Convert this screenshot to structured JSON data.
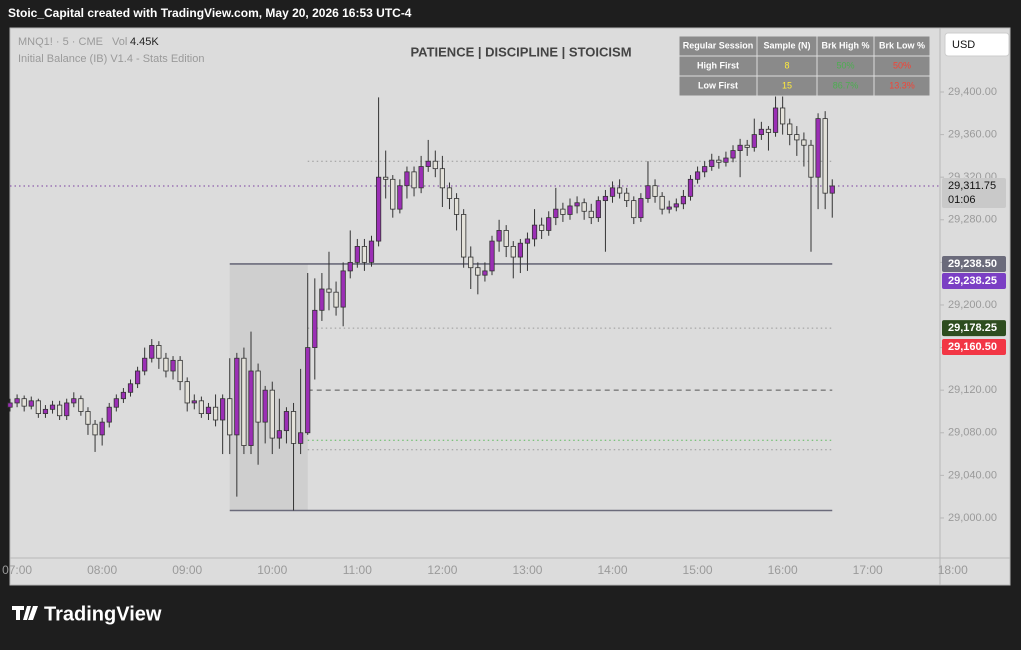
{
  "header": {
    "text": "Stoic_Capital created with TradingView.com, May 20, 2026 16:53 UTC-4"
  },
  "footer": {
    "brand": "TradingView"
  },
  "chart_data": {
    "type": "candlestick",
    "title": "PATIENCE | DISCIPLINE | STOICISM",
    "symbol": "MNQ1! · 5 · CME",
    "volume_label": "Vol",
    "volume": "4.45K",
    "indicator": "Initial Balance (IB) V1.4 - Stats Edition",
    "currency": "USD",
    "up_color": "#9b2fb5",
    "down_color": "#e4e2da",
    "x": [
      "06:55",
      "07:00",
      "07:05",
      "07:10",
      "07:15",
      "07:20",
      "07:25",
      "07:30",
      "07:35",
      "07:40",
      "07:45",
      "07:50",
      "07:55",
      "08:00",
      "08:05",
      "08:10",
      "08:15",
      "08:20",
      "08:25",
      "08:30",
      "08:35",
      "08:40",
      "08:45",
      "08:50",
      "08:55",
      "09:00",
      "09:05",
      "09:10",
      "09:15",
      "09:20",
      "09:25",
      "09:30",
      "09:35",
      "09:40",
      "09:45",
      "09:50",
      "09:55",
      "10:00",
      "10:05",
      "10:10",
      "10:15",
      "10:20",
      "10:25",
      "10:30",
      "10:35",
      "10:40",
      "10:45",
      "10:50",
      "10:55",
      "11:00",
      "11:05",
      "11:10",
      "11:15",
      "11:20",
      "11:25",
      "11:30",
      "11:35",
      "11:40",
      "11:45",
      "11:50",
      "11:55",
      "12:00",
      "12:05",
      "12:10",
      "12:15",
      "12:20",
      "12:25",
      "12:30",
      "12:35",
      "12:40",
      "12:45",
      "12:50",
      "12:55",
      "13:00",
      "13:05",
      "13:10",
      "13:15",
      "13:20",
      "13:25",
      "13:30",
      "13:35",
      "13:40",
      "13:45",
      "13:50",
      "13:55",
      "14:00",
      "14:05",
      "14:10",
      "14:15",
      "14:20",
      "14:25",
      "14:30",
      "14:35",
      "14:40",
      "14:45",
      "14:50",
      "14:55",
      "15:00",
      "15:05",
      "15:10",
      "15:15",
      "15:20",
      "15:25",
      "15:30",
      "15:35",
      "15:40",
      "15:45",
      "15:50",
      "15:55",
      "16:00",
      "16:05",
      "16:10",
      "16:15",
      "16:20",
      "16:25",
      "16:30",
      "16:35"
    ],
    "open": [
      29104,
      29108,
      29112,
      29105,
      29110,
      29098,
      29102,
      29106,
      29096,
      29108,
      29112,
      29100,
      29088,
      29078,
      29090,
      29104,
      29112,
      29118,
      29126,
      29138,
      29150,
      29162,
      29150,
      29138,
      29148,
      29128,
      29108,
      29110,
      29098,
      29104,
      29092,
      29112,
      29078,
      29150,
      29068,
      29138,
      29090,
      29120,
      29075,
      29082,
      29100,
      29070,
      29080,
      29160,
      29195,
      29215,
      29212,
      29198,
      29232,
      29240,
      29255,
      29240,
      29260,
      29320,
      29318,
      29290,
      29312,
      29325,
      29310,
      29330,
      29335,
      29328,
      29310,
      29300,
      29285,
      29245,
      29235,
      29228,
      29232,
      29260,
      29270,
      29255,
      29245,
      29258,
      29262,
      29275,
      29270,
      29282,
      29290,
      29285,
      29293,
      29296,
      29288,
      29282,
      29298,
      29302,
      29310,
      29305,
      29298,
      29282,
      29300,
      29312,
      29302,
      29290,
      29292,
      29295,
      29302,
      29318,
      29325,
      29330,
      29336,
      29334,
      29338,
      29345,
      29350,
      29348,
      29360,
      29365,
      29362,
      29385,
      29370,
      29360,
      29355,
      29350,
      29320,
      29375,
      29305
    ],
    "high": [
      29112,
      29116,
      29115,
      29114,
      29112,
      29106,
      29110,
      29110,
      29112,
      29118,
      29115,
      29104,
      29092,
      29094,
      29108,
      29116,
      29122,
      29130,
      29142,
      29160,
      29168,
      29166,
      29155,
      29152,
      29152,
      29132,
      29116,
      29114,
      29108,
      29116,
      29116,
      29150,
      29155,
      29160,
      29175,
      29145,
      29124,
      29128,
      29112,
      29104,
      29108,
      29140,
      29230,
      29225,
      29230,
      29250,
      29222,
      29240,
      29270,
      29262,
      29262,
      29265,
      29395,
      29345,
      29322,
      29318,
      29330,
      29330,
      29340,
      29355,
      29345,
      29340,
      29315,
      29305,
      29290,
      29255,
      29240,
      29240,
      29265,
      29280,
      29275,
      29260,
      29262,
      29268,
      29290,
      29282,
      29288,
      29310,
      29296,
      29300,
      29302,
      29300,
      29295,
      29302,
      29308,
      29316,
      29318,
      29310,
      29302,
      29305,
      29335,
      29318,
      29306,
      29298,
      29300,
      29308,
      29322,
      29330,
      29335,
      29342,
      29340,
      29344,
      29350,
      29356,
      29355,
      29375,
      29372,
      29368,
      29398,
      29400,
      29375,
      29368,
      29362,
      29355,
      29380,
      29382,
      29318
    ],
    "low": [
      29100,
      29104,
      29100,
      29102,
      29094,
      29094,
      29098,
      29092,
      29092,
      29104,
      29096,
      29078,
      29062,
      29068,
      29085,
      29100,
      29108,
      29114,
      29122,
      29134,
      29146,
      29140,
      29132,
      29130,
      29120,
      29100,
      29102,
      29094,
      29092,
      29086,
      29060,
      29060,
      29020,
      29060,
      29060,
      29050,
      29070,
      29060,
      29065,
      29070,
      29007,
      29060,
      29078,
      29130,
      29185,
      29195,
      29190,
      29180,
      29225,
      29235,
      29232,
      29236,
      29255,
      29300,
      29282,
      29286,
      29300,
      29302,
      29305,
      29325,
      29320,
      29292,
      29290,
      29270,
      29235,
      29215,
      29210,
      29222,
      29228,
      29250,
      29245,
      29225,
      29230,
      29232,
      29255,
      29262,
      29265,
      29275,
      29278,
      29280,
      29286,
      29280,
      29276,
      29278,
      29250,
      29296,
      29300,
      29292,
      29276,
      29278,
      29296,
      29296,
      29285,
      29286,
      29288,
      29290,
      29298,
      29314,
      29320,
      29326,
      29328,
      29330,
      29334,
      29320,
      29340,
      29344,
      29355,
      29345,
      29358,
      29360,
      29350,
      29340,
      29330,
      29250,
      29290,
      29290,
      29282
    ],
    "close": [
      29108,
      29112,
      29105,
      29110,
      29098,
      29102,
      29106,
      29096,
      29108,
      29112,
      29100,
      29088,
      29078,
      29090,
      29104,
      29112,
      29118,
      29126,
      29138,
      29150,
      29162,
      29150,
      29138,
      29148,
      29128,
      29108,
      29110,
      29098,
      29104,
      29092,
      29112,
      29078,
      29150,
      29068,
      29138,
      29090,
      29120,
      29075,
      29082,
      29100,
      29070,
      29080,
      29160,
      29195,
      29215,
      29212,
      29198,
      29232,
      29240,
      29255,
      29240,
      29260,
      29320,
      29318,
      29290,
      29312,
      29325,
      29310,
      29330,
      29335,
      29328,
      29310,
      29300,
      29285,
      29245,
      29235,
      29228,
      29232,
      29260,
      29270,
      29255,
      29245,
      29258,
      29262,
      29275,
      29270,
      29282,
      29290,
      29285,
      29293,
      29296,
      29288,
      29282,
      29298,
      29302,
      29310,
      29305,
      29298,
      29282,
      29300,
      29312,
      29302,
      29290,
      29292,
      29295,
      29302,
      29318,
      29325,
      29330,
      29336,
      29334,
      29338,
      29345,
      29350,
      29348,
      29360,
      29365,
      29362,
      29385,
      29370,
      29360,
      29355,
      29350,
      29320,
      29375,
      29305,
      29311.75
    ],
    "xlim": [
      "06:55",
      "17:51"
    ],
    "xticks": [
      "07:00",
      "08:00",
      "09:00",
      "10:00",
      "11:00",
      "12:00",
      "13:00",
      "14:00",
      "15:00",
      "16:00",
      "17:00",
      "18:00"
    ],
    "ylim": [
      28962.4,
      29460.1
    ],
    "yticks": [
      {
        "value": 29000,
        "label": "29,000.00"
      },
      {
        "value": 29040,
        "label": "29,040.00"
      },
      {
        "value": 29080,
        "label": "29,080.00"
      },
      {
        "value": 29120,
        "label": "29,120.00"
      },
      {
        "value": 29160,
        "label": "29,160.00"
      },
      {
        "value": 29200,
        "label": "29,200.00"
      },
      {
        "value": 29240,
        "label": "29,240.00"
      },
      {
        "value": 29280,
        "label": "29,280.00"
      },
      {
        "value": 29320,
        "label": "29,320.00"
      },
      {
        "value": 29360,
        "label": "29,360.00"
      },
      {
        "value": 29400,
        "label": "29,400.00"
      }
    ],
    "ib_box": {
      "start": "09:30",
      "end": "10:25",
      "high": 29238.5,
      "low": 29007,
      "color": "#cfcfcf"
    },
    "levels": [
      {
        "value": 29238.5,
        "start": "09:30",
        "end": "16:35",
        "style": "solid",
        "color": "#6b6b7b"
      },
      {
        "value": 29007,
        "start": "09:30",
        "end": "16:35",
        "style": "solid",
        "color": "#6b6b7b"
      },
      {
        "value": 29335,
        "start": "10:25",
        "end": "16:35",
        "style": "dotted",
        "color": "#999999"
      },
      {
        "value": 29178.25,
        "start": "10:25",
        "end": "16:35",
        "style": "dotted",
        "color": "#999999"
      },
      {
        "value": 29120,
        "start": "10:25",
        "end": "16:35",
        "style": "dashed",
        "color": "#555555"
      },
      {
        "value": 29073,
        "start": "10:25",
        "end": "16:35",
        "style": "dotted",
        "color": "#5cb85c"
      },
      {
        "value": 29064,
        "start": "10:25",
        "end": "16:35",
        "style": "dotted",
        "color": "#999999"
      },
      {
        "value": 29311.75,
        "start": "06:55",
        "end": "17:51",
        "style": "dotted",
        "color": "#7a3fa0"
      }
    ],
    "price_tags": [
      {
        "value": 29311.75,
        "label": "29,311.75",
        "countdown": "01:06",
        "color": "#c9c9c9",
        "text_color": "#111111"
      },
      {
        "value": 29238.5,
        "label": "29,238.50",
        "color": "#6b6b7b",
        "text_color": "#ffffff"
      },
      {
        "value": 29238.25,
        "label": "29,238.25",
        "color": "#7b3fc4",
        "text_color": "#ffffff"
      },
      {
        "value": 29178.25,
        "label": "29,178.25",
        "color": "#2e4d1f",
        "text_color": "#ffffff"
      },
      {
        "value": 29160.5,
        "label": "29,160.50",
        "color": "#f23645",
        "text_color": "#ffffff"
      }
    ],
    "stats_table": {
      "header": [
        "Regular Session",
        "Sample (N)",
        "Brk High %",
        "Brk Low %"
      ],
      "rows": [
        [
          "High First",
          "8",
          "50%",
          "50%"
        ],
        [
          "Low First",
          "15",
          "86.7%",
          "13.3%"
        ]
      ],
      "colors": [
        "#ffffff",
        "#ffeb3b",
        "#4caf50",
        "#f44336"
      ]
    }
  }
}
